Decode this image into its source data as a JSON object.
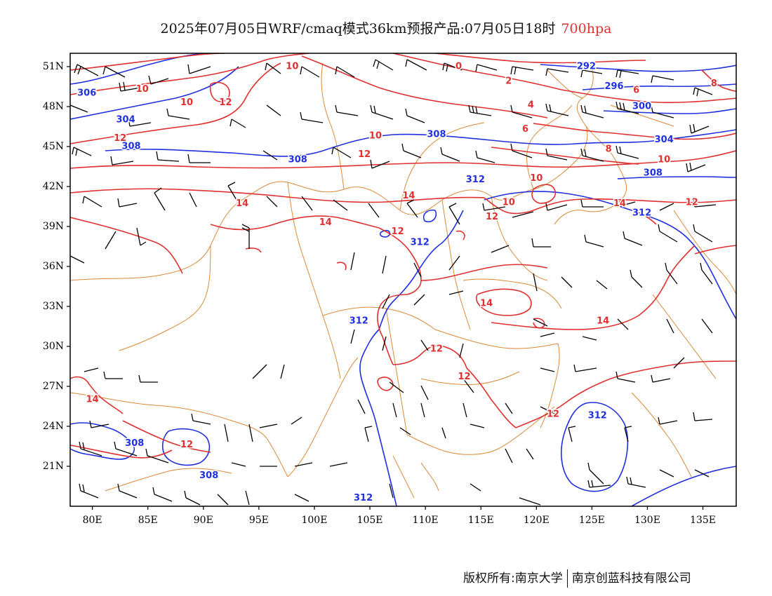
{
  "title": {
    "main": "2025年07月05日WRF/cmaq模式36km预报产品:07月05日18时",
    "level": "700hpa"
  },
  "colors": {
    "height_contour": "#2030e0",
    "temperature_contour": "#e03030",
    "boundary": "#d98a3a",
    "wind": "#000000"
  },
  "axes": {
    "lat_labels": [
      "51N",
      "48N",
      "45N",
      "42N",
      "39N",
      "36N",
      "33N",
      "30N",
      "27N",
      "24N",
      "21N"
    ],
    "lat_values": [
      51,
      48,
      45,
      42,
      39,
      36,
      33,
      30,
      27,
      24,
      21
    ],
    "lon_labels": [
      "80E",
      "85E",
      "90E",
      "95E",
      "100E",
      "105E",
      "110E",
      "115E",
      "120E",
      "125E",
      "130E",
      "135E"
    ],
    "lon_values": [
      80,
      85,
      90,
      95,
      100,
      105,
      110,
      115,
      120,
      125,
      130,
      135
    ],
    "lon_range": [
      78,
      138
    ],
    "lat_range": [
      18,
      52
    ]
  },
  "height_labels": [
    {
      "text": "306",
      "lon": 79.5,
      "lat": 49
    },
    {
      "text": "304",
      "lon": 83,
      "lat": 47
    },
    {
      "text": "308",
      "lon": 83.5,
      "lat": 45
    },
    {
      "text": "308",
      "lon": 98.5,
      "lat": 44
    },
    {
      "text": "308",
      "lon": 111,
      "lat": 45.9
    },
    {
      "text": "292",
      "lon": 124.5,
      "lat": 51
    },
    {
      "text": "296",
      "lon": 127,
      "lat": 49.5
    },
    {
      "text": "300",
      "lon": 129.5,
      "lat": 48
    },
    {
      "text": "304",
      "lon": 131.5,
      "lat": 45.5
    },
    {
      "text": "308",
      "lon": 130.5,
      "lat": 43
    },
    {
      "text": "312",
      "lon": 114.5,
      "lat": 42.5
    },
    {
      "text": "312",
      "lon": 129.5,
      "lat": 40
    },
    {
      "text": "312",
      "lon": 109.5,
      "lat": 37.8
    },
    {
      "text": "312",
      "lon": 104,
      "lat": 31.9
    },
    {
      "text": "312",
      "lon": 125.5,
      "lat": 24.8
    },
    {
      "text": "308",
      "lon": 83.8,
      "lat": 22.7
    },
    {
      "text": "308",
      "lon": 90.5,
      "lat": 20.3
    },
    {
      "text": "312",
      "lon": 104.4,
      "lat": 18.6
    }
  ],
  "temp_labels": [
    {
      "text": "10",
      "lon": 98,
      "lat": 51
    },
    {
      "text": "10",
      "lon": 84.5,
      "lat": 49.3
    },
    {
      "text": "10",
      "lon": 88.5,
      "lat": 48.3
    },
    {
      "text": "12",
      "lon": 92,
      "lat": 48.3
    },
    {
      "text": "12",
      "lon": 82.5,
      "lat": 45.6
    },
    {
      "text": "0",
      "lon": 113,
      "lat": 51
    },
    {
      "text": "2",
      "lon": 117.5,
      "lat": 49.9
    },
    {
      "text": "4",
      "lon": 119.5,
      "lat": 48.1
    },
    {
      "text": "6",
      "lon": 119,
      "lat": 46.3
    },
    {
      "text": "6",
      "lon": 129,
      "lat": 49.2
    },
    {
      "text": "8",
      "lon": 136,
      "lat": 49.7
    },
    {
      "text": "8",
      "lon": 126.5,
      "lat": 44.8
    },
    {
      "text": "10",
      "lon": 105.5,
      "lat": 45.8
    },
    {
      "text": "12",
      "lon": 104.5,
      "lat": 44.4
    },
    {
      "text": "10",
      "lon": 120,
      "lat": 42.6
    },
    {
      "text": "10",
      "lon": 117.5,
      "lat": 40.8
    },
    {
      "text": "10",
      "lon": 131.5,
      "lat": 44
    },
    {
      "text": "12",
      "lon": 134,
      "lat": 40.8
    },
    {
      "text": "14",
      "lon": 108.5,
      "lat": 41.3
    },
    {
      "text": "14",
      "lon": 93.5,
      "lat": 40.7
    },
    {
      "text": "14",
      "lon": 101,
      "lat": 39.3
    },
    {
      "text": "12",
      "lon": 107.5,
      "lat": 38.6
    },
    {
      "text": "12",
      "lon": 116,
      "lat": 39.7
    },
    {
      "text": "14",
      "lon": 127.5,
      "lat": 40.7
    },
    {
      "text": "14",
      "lon": 115.5,
      "lat": 33.2
    },
    {
      "text": "14",
      "lon": 126,
      "lat": 31.9
    },
    {
      "text": "12",
      "lon": 111,
      "lat": 29.8
    },
    {
      "text": "12",
      "lon": 113.5,
      "lat": 27.7
    },
    {
      "text": "12",
      "lon": 121.5,
      "lat": 24.9
    },
    {
      "text": "14",
      "lon": 80,
      "lat": 26
    },
    {
      "text": "12",
      "lon": 88.5,
      "lat": 22.6
    }
  ],
  "attribution": {
    "left": "版权所有:南京大学",
    "right": "南京创蓝科技有限公司"
  }
}
